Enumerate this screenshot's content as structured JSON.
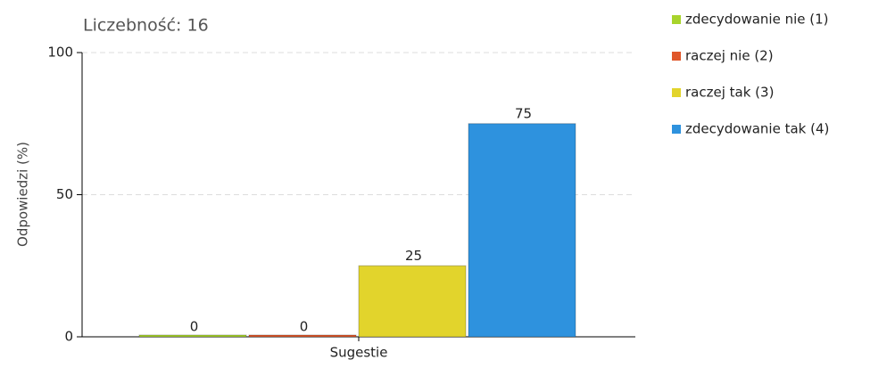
{
  "chart_data": {
    "type": "bar",
    "title": "Liczebność: 16",
    "y_label": "Odpowiedzi (%)",
    "categories": [
      "Sugestie"
    ],
    "series": [
      {
        "name": "zdecydowanie nie (1)",
        "color": "#a8d42c",
        "values": [
          0
        ]
      },
      {
        "name": "raczej nie (2)",
        "color": "#e0572a",
        "values": [
          0
        ]
      },
      {
        "name": "raczej tak (3)",
        "color": "#e2d42c",
        "values": [
          25
        ]
      },
      {
        "name": "zdecydowanie tak (4)",
        "color": "#2e92de",
        "values": [
          75
        ]
      }
    ],
    "ylim": [
      0,
      100
    ],
    "yticks": [
      0,
      50,
      100
    ],
    "grid": true,
    "legend": "right"
  }
}
